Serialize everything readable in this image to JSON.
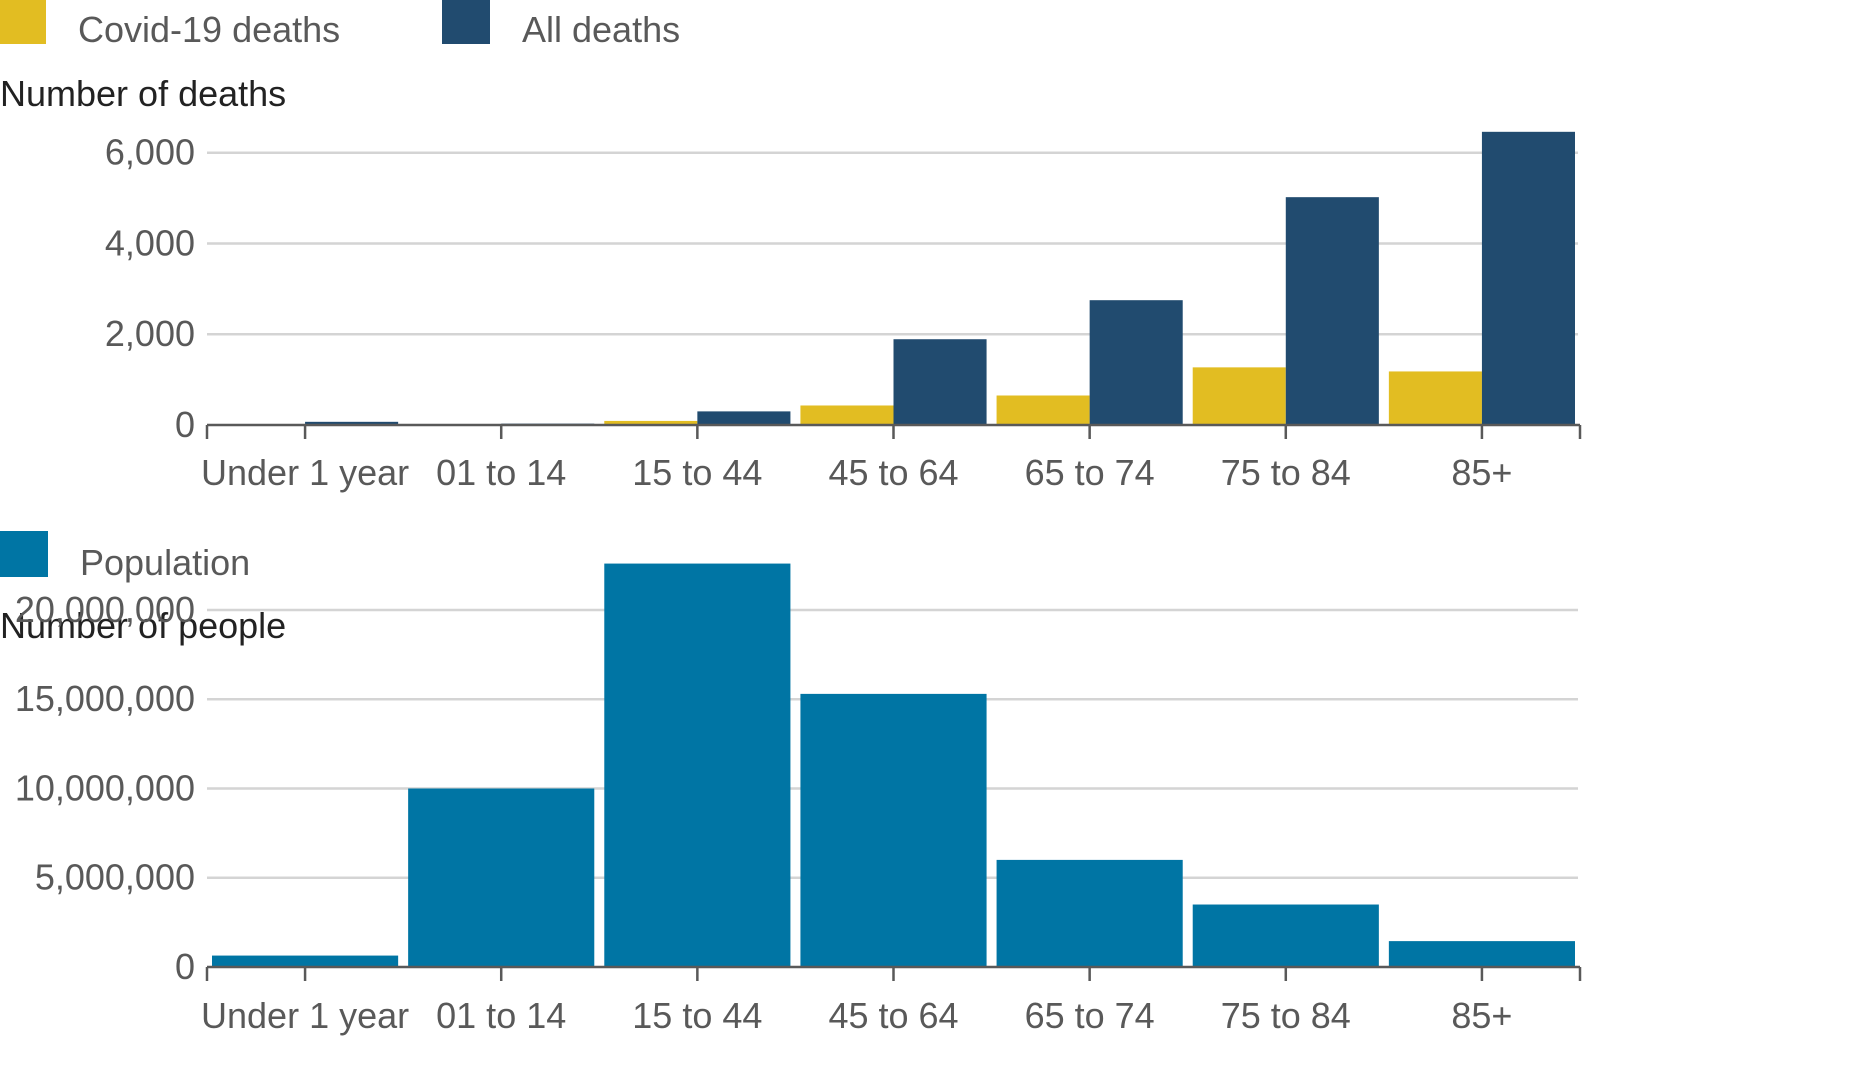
{
  "chart_data": [
    {
      "type": "bar",
      "categories": [
        "Under 1 year",
        "01 to 14",
        "15 to 44",
        "45 to 64",
        "65 to 74",
        "75 to 84",
        "85+"
      ],
      "series": [
        {
          "name": "Covid-19 deaths",
          "color": "#e2bd22",
          "values": [
            0,
            0,
            90,
            430,
            650,
            1270,
            1180
          ]
        },
        {
          "name": "All deaths",
          "color": "#214b6f",
          "values": [
            70,
            30,
            300,
            1890,
            2750,
            5020,
            6460
          ]
        }
      ],
      "title": "",
      "ylabel": "Number of deaths",
      "xlabel": "",
      "ylim": [
        0,
        6500
      ],
      "yticks": [
        0,
        2000,
        4000,
        6000
      ],
      "ytick_labels": [
        "0",
        "2,000",
        "4,000",
        "6,000"
      ],
      "grid": true,
      "legend": "top-left"
    },
    {
      "type": "bar",
      "categories": [
        "Under 1 year",
        "01 to 14",
        "15 to 44",
        "45 to 64",
        "65 to 74",
        "75 to 84",
        "85+"
      ],
      "series": [
        {
          "name": "Population",
          "color": "#0075a4",
          "values": [
            640000,
            10000000,
            22600000,
            15300000,
            6000000,
            3500000,
            1450000
          ]
        }
      ],
      "title": "",
      "ylabel": "Number of people",
      "xlabel": "",
      "ylim": [
        0,
        22800000
      ],
      "yticks": [
        0,
        5000000,
        10000000,
        15000000,
        20000000
      ],
      "ytick_labels": [
        "0",
        "5,000,000",
        "10,000,000",
        "15,000,000",
        "20,000,000"
      ],
      "grid": true,
      "legend": "top-left"
    }
  ]
}
